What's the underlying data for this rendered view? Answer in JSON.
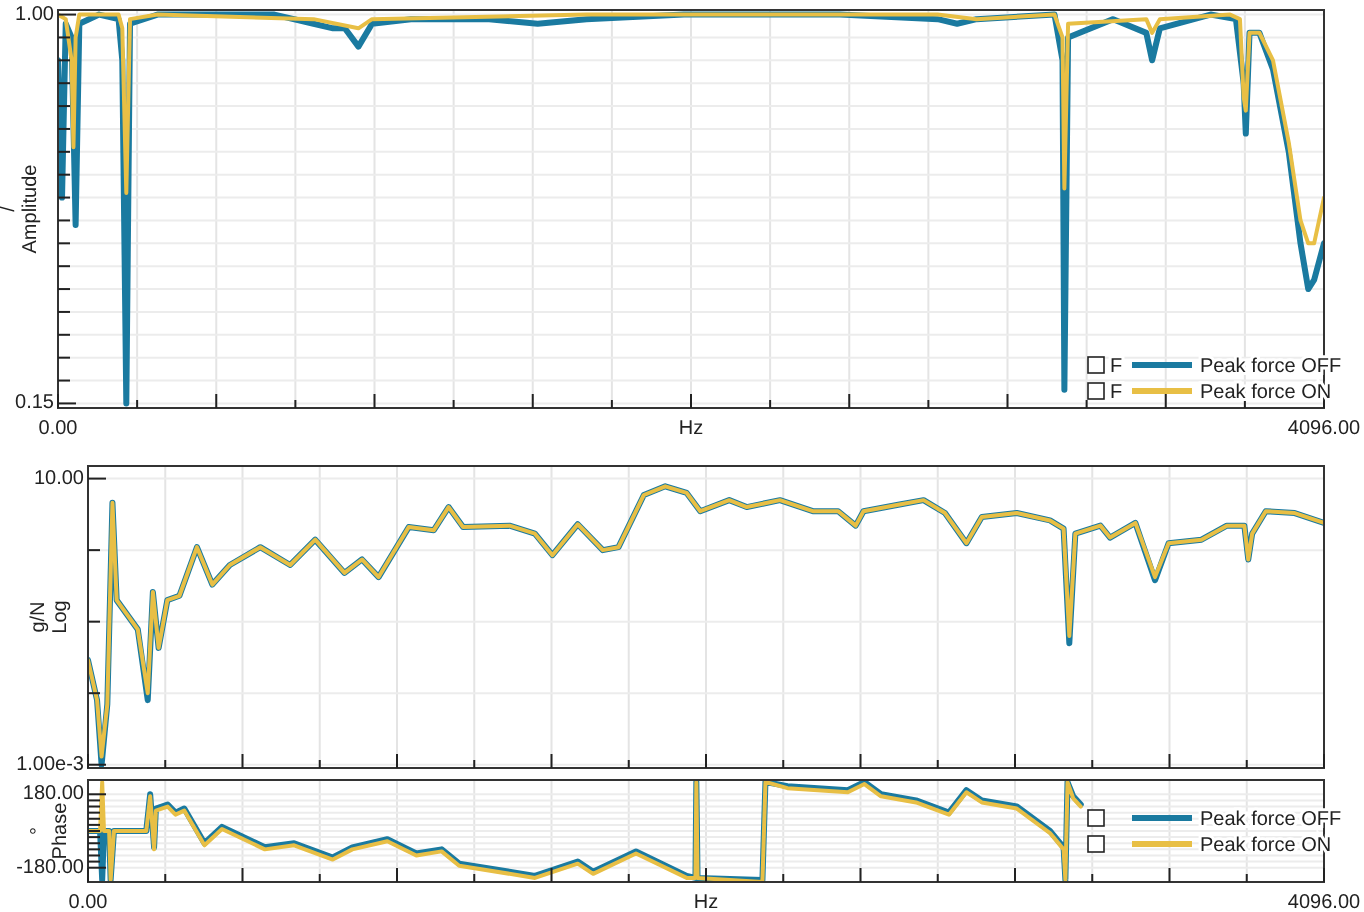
{
  "chart_data": [
    {
      "type": "line",
      "xlabel": "Hz",
      "ylabel": "/\nAmplitude",
      "xlim": [
        0,
        4096
      ],
      "ylim": [
        0.14,
        1.01
      ],
      "grid": true,
      "legend": "bottom right",
      "annotations": [
        "F",
        "F"
      ],
      "xticks": [
        {
          "value": 0,
          "label": "0.00"
        },
        {
          "value": 256,
          "label": null
        },
        {
          "value": 512,
          "label": null
        },
        {
          "value": 768,
          "label": null
        },
        {
          "value": 1024,
          "label": null
        },
        {
          "value": 1280,
          "label": null
        },
        {
          "value": 1536,
          "label": null
        },
        {
          "value": 1792,
          "label": null
        },
        {
          "value": 2048,
          "label": null
        },
        {
          "value": 2304,
          "label": null
        },
        {
          "value": 2560,
          "label": null
        },
        {
          "value": 2816,
          "label": null
        },
        {
          "value": 3072,
          "label": null
        },
        {
          "value": 3328,
          "label": null
        },
        {
          "value": 3584,
          "label": null
        },
        {
          "value": 3840,
          "label": null
        },
        {
          "value": 4096,
          "label": "4096.00"
        }
      ],
      "yticks": [
        {
          "value": 0.15,
          "label": "0.15"
        },
        {
          "value": 0.2,
          "label": null
        },
        {
          "value": 0.25,
          "label": null
        },
        {
          "value": 0.3,
          "label": null
        },
        {
          "value": 0.35,
          "label": null
        },
        {
          "value": 0.4,
          "label": null
        },
        {
          "value": 0.45,
          "label": null
        },
        {
          "value": 0.5,
          "label": null
        },
        {
          "value": 0.55,
          "label": null
        },
        {
          "value": 0.6,
          "label": null
        },
        {
          "value": 0.65,
          "label": null
        },
        {
          "value": 0.7,
          "label": null
        },
        {
          "value": 0.75,
          "label": null
        },
        {
          "value": 0.8,
          "label": null
        },
        {
          "value": 0.85,
          "label": null
        },
        {
          "value": 0.9,
          "label": null
        },
        {
          "value": 0.95,
          "label": null
        },
        {
          "value": 1.0,
          "label": "1.00"
        }
      ],
      "series": [
        {
          "name": "Peak force OFF",
          "color": "#1a7aa0",
          "x": [
            0,
            13,
            25,
            44,
            57,
            69,
            133,
            196,
            208,
            221,
            233,
            322,
            700,
            827,
            890,
            928,
            972,
            1016,
            1142,
            1395,
            1552,
            1710,
            2025,
            2530,
            2846,
            2909,
            2972,
            3224,
            3250,
            3256,
            3268,
            3414,
            3521,
            3540,
            3565,
            3729,
            3811,
            3836,
            3843,
            3855,
            3887,
            3931,
            3982,
            4020,
            4045,
            4064,
            4096
          ],
          "values": [
            0.9,
            0.6,
            0.98,
            0.95,
            0.54,
            0.98,
            1.0,
            0.99,
            0.9,
            0.15,
            0.98,
            1.0,
            1.0,
            0.98,
            0.97,
            0.97,
            0.93,
            0.98,
            0.99,
            0.99,
            0.98,
            0.99,
            1.0,
            1.0,
            0.99,
            0.98,
            0.99,
            1.0,
            0.9,
            0.18,
            0.95,
            0.99,
            0.96,
            0.9,
            0.97,
            1.0,
            0.99,
            0.85,
            0.74,
            0.96,
            0.96,
            0.88,
            0.7,
            0.5,
            0.4,
            0.42,
            0.5
          ]
        },
        {
          "name": "Peak force ON",
          "color": "#e8bf45",
          "x": [
            0,
            25,
            44,
            50,
            57,
            69,
            196,
            208,
            221,
            233,
            322,
            827,
            972,
            1016,
            1710,
            2025,
            2846,
            2972,
            3224,
            3250,
            3256,
            3268,
            3521,
            3540,
            3565,
            3792,
            3824,
            3836,
            3843,
            3855,
            3887,
            3931,
            3982,
            4020,
            4045,
            4064,
            4096
          ],
          "values": [
            1.0,
            0.99,
            0.9,
            0.71,
            0.95,
            1.0,
            1.0,
            0.97,
            0.61,
            0.99,
            1.0,
            0.99,
            0.97,
            0.99,
            1.0,
            1.0,
            1.0,
            0.99,
            1.0,
            0.95,
            0.62,
            0.98,
            0.99,
            0.96,
            0.99,
            1.0,
            0.99,
            0.82,
            0.79,
            0.96,
            0.96,
            0.9,
            0.72,
            0.55,
            0.5,
            0.5,
            0.6
          ]
        }
      ]
    },
    {
      "type": "line",
      "ylabel": "g/N\nLog",
      "xlim": [
        0,
        4096
      ],
      "ylim": [
        0.0009,
        15
      ],
      "log": true,
      "grid": true,
      "tick_labels": "y",
      "xticks": [
        0,
        256,
        512,
        768,
        1024,
        1280,
        1536,
        1792,
        2048,
        2304,
        2560,
        2816,
        3072,
        3328,
        3584,
        3840,
        4096
      ],
      "yticks": [
        {
          "value": 0.001,
          "label": "1.00e-3"
        },
        {
          "value": 0.01,
          "label": null
        },
        {
          "value": 0.1,
          "label": null
        },
        {
          "value": 1,
          "label": null
        },
        {
          "value": 10,
          "label": "10.00"
        }
      ],
      "series": [
        {
          "color": "#1a7aa0",
          "x": [
            0,
            30,
            45,
            64,
            81,
            95,
            165,
            198,
            215,
            234,
            263,
            303,
            361,
            412,
            470,
            571,
            670,
            753,
            850,
            908,
            963,
            1063,
            1146,
            1195,
            1243,
            1397,
            1481,
            1539,
            1623,
            1706,
            1758,
            1842,
            1913,
            1984,
            2029,
            2125,
            2183,
            2293,
            2402,
            2486,
            2544,
            2570,
            2685,
            2769,
            2840,
            2911,
            2962,
            3078,
            3188,
            3233,
            3252,
            3272,
            3355,
            3387,
            3471,
            3536,
            3581,
            3690,
            3774,
            3832,
            3845,
            3858,
            3903,
            3999,
            4096
          ],
          "values": [
            0.029,
            0.008,
            0.001,
            0.007,
            4.6,
            0.2,
            0.078,
            0.008,
            0.26,
            0.043,
            0.2,
            0.23,
            1.1,
            0.33,
            0.62,
            1.1,
            0.62,
            1.4,
            0.48,
            0.74,
            0.42,
            2.1,
            1.9,
            4.0,
            2.1,
            2.2,
            1.7,
            0.85,
            2.3,
            1.0,
            1.1,
            5.9,
            7.8,
            6.3,
            3.5,
            5.0,
            4.0,
            5.0,
            3.5,
            3.5,
            2.2,
            3.5,
            4.3,
            5.0,
            3.3,
            1.25,
            2.9,
            3.3,
            2.6,
            2.0,
            0.05,
            1.7,
            2.2,
            1.5,
            2.4,
            0.38,
            1.25,
            1.4,
            2.2,
            2.2,
            0.74,
            1.7,
            3.5,
            3.3,
            2.4
          ]
        },
        {
          "color": "#e8bf45",
          "x": [
            0,
            30,
            45,
            64,
            81,
            95,
            165,
            198,
            215,
            234,
            263,
            303,
            361,
            412,
            470,
            571,
            670,
            753,
            850,
            908,
            963,
            1063,
            1146,
            1195,
            1243,
            1397,
            1481,
            1539,
            1623,
            1706,
            1758,
            1842,
            1913,
            1984,
            2029,
            2125,
            2183,
            2293,
            2402,
            2486,
            2544,
            2570,
            2685,
            2769,
            2840,
            2911,
            2962,
            3078,
            3188,
            3233,
            3252,
            3272,
            3355,
            3387,
            3471,
            3536,
            3581,
            3690,
            3774,
            3832,
            3845,
            3858,
            3903,
            3999,
            4096
          ],
          "values": [
            0.029,
            0.008,
            0.0013,
            0.007,
            4.6,
            0.2,
            0.078,
            0.01,
            0.26,
            0.043,
            0.2,
            0.23,
            1.1,
            0.33,
            0.62,
            1.1,
            0.62,
            1.4,
            0.48,
            0.74,
            0.42,
            2.1,
            1.9,
            4.0,
            2.1,
            2.2,
            1.7,
            0.85,
            2.3,
            1.0,
            1.1,
            5.9,
            7.8,
            6.3,
            3.5,
            5.0,
            4.0,
            5.0,
            3.5,
            3.5,
            2.2,
            3.5,
            4.3,
            5.0,
            3.3,
            1.25,
            2.9,
            3.3,
            2.6,
            2.0,
            0.063,
            1.7,
            2.2,
            1.5,
            2.4,
            0.42,
            1.25,
            1.4,
            2.2,
            2.2,
            0.74,
            1.7,
            3.5,
            3.3,
            2.4
          ]
        }
      ]
    },
    {
      "type": "line",
      "xlabel": "Hz",
      "ylabel": "°\nPhase",
      "xlim": [
        0,
        4096
      ],
      "ylim": [
        -250,
        250
      ],
      "grid": true,
      "legend": "right",
      "xticks": [
        {
          "value": 0,
          "label": "0.00"
        },
        {
          "value": 256,
          "label": null
        },
        {
          "value": 512,
          "label": null
        },
        {
          "value": 768,
          "label": null
        },
        {
          "value": 1024,
          "label": null
        },
        {
          "value": 1280,
          "label": null
        },
        {
          "value": 1536,
          "label": null
        },
        {
          "value": 1792,
          "label": null
        },
        {
          "value": 2048,
          "label": null
        },
        {
          "value": 2304,
          "label": null
        },
        {
          "value": 2560,
          "label": null
        },
        {
          "value": 2816,
          "label": null
        },
        {
          "value": 3072,
          "label": null
        },
        {
          "value": 3328,
          "label": null
        },
        {
          "value": 3584,
          "label": null
        },
        {
          "value": 3840,
          "label": null
        },
        {
          "value": 4096,
          "label": "4096.00"
        }
      ],
      "yticks": [
        {
          "value": -180,
          "label": "-180.00"
        },
        {
          "value": -150,
          "label": null
        },
        {
          "value": -120,
          "label": null
        },
        {
          "value": -90,
          "label": null
        },
        {
          "value": -60,
          "label": null
        },
        {
          "value": -30,
          "label": null
        },
        {
          "value": 0,
          "label": null
        },
        {
          "value": 30,
          "label": null
        },
        {
          "value": 60,
          "label": null
        },
        {
          "value": 90,
          "label": null
        },
        {
          "value": 120,
          "label": null
        },
        {
          "value": 150,
          "label": null
        },
        {
          "value": 180,
          "label": "180.00"
        }
      ],
      "series": [
        {
          "name": "Peak force OFF",
          "color": "#1a7aa0",
          "x": [
            0,
            40,
            47,
            53,
            70,
            75,
            86,
            193,
            206,
            219,
            225,
            264,
            290,
            319,
            386,
            444,
            586,
            683,
            811,
            876,
            992,
            1088,
            1172,
            1230,
            1481,
            1623,
            1674,
            1816,
            1984,
            2013,
            2016,
            2020,
            2235,
            2245,
            2318,
            2518,
            2573,
            2628,
            2744,
            2853,
            2911,
            2962,
            3078,
            3188,
            3233,
            3239,
            3246,
            3265,
            3290
          ],
          "values": [
            0,
            0,
            -240,
            0,
            0,
            -240,
            0,
            0,
            180,
            -80,
            110,
            130,
            90,
            110,
            -60,
            20,
            -80,
            -60,
            -130,
            -80,
            -40,
            -110,
            -90,
            -160,
            -220,
            -150,
            -200,
            -100,
            -220,
            -230,
            240,
            -230,
            -240,
            240,
            220,
            200,
            240,
            180,
            150,
            90,
            200,
            150,
            120,
            0,
            -80,
            -240,
            240,
            170,
            130
          ]
        },
        {
          "name": "Peak force ON",
          "color": "#e8bf45",
          "x": [
            0,
            40,
            47,
            53,
            70,
            75,
            86,
            193,
            206,
            219,
            225,
            264,
            290,
            319,
            386,
            444,
            586,
            683,
            811,
            876,
            992,
            1088,
            1172,
            1230,
            1481,
            1623,
            1674,
            1816,
            1984,
            2013,
            2016,
            2020,
            2235,
            2245,
            2318,
            2518,
            2573,
            2628,
            2744,
            2853,
            2911,
            2962,
            3078,
            3188,
            3233,
            3239,
            3246,
            3265,
            3290
          ],
          "values": [
            0,
            0,
            240,
            0,
            0,
            -240,
            0,
            0,
            170,
            -90,
            100,
            120,
            80,
            100,
            -70,
            10,
            -90,
            -70,
            -140,
            -90,
            -50,
            -120,
            -100,
            -170,
            -230,
            -160,
            -210,
            -110,
            -230,
            -230,
            240,
            -230,
            -250,
            240,
            210,
            190,
            230,
            170,
            140,
            80,
            190,
            140,
            110,
            -10,
            -90,
            -240,
            240,
            160,
            120
          ]
        }
      ]
    }
  ]
}
